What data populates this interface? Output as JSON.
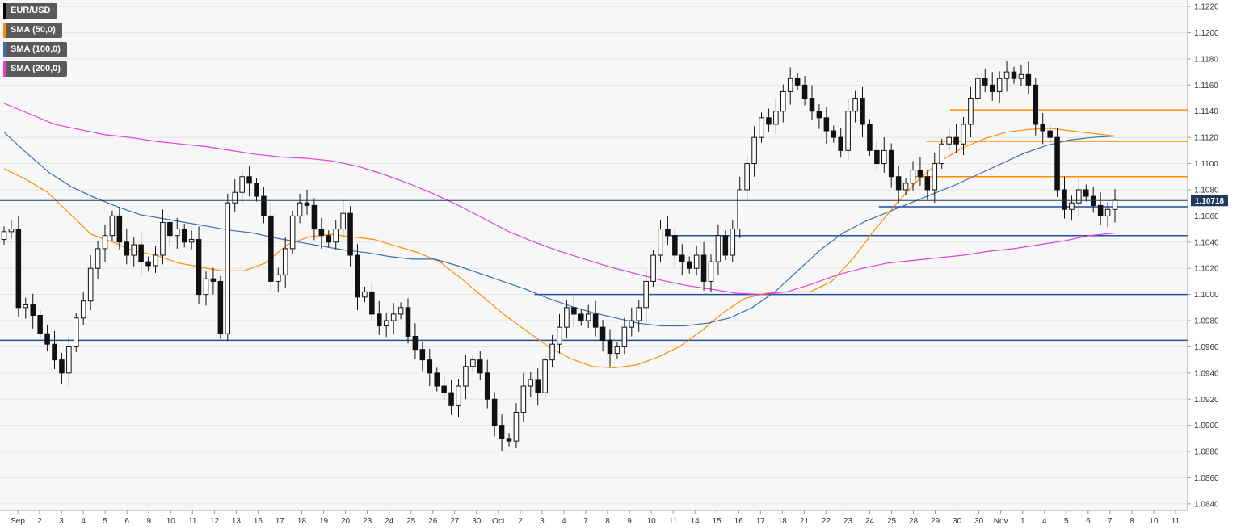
{
  "chart_data": {
    "type": "candlestick",
    "symbol": "EUR/USD",
    "colors": {
      "up": "#ffffff",
      "down": "#111111",
      "wick": "#111111",
      "grid": "#e6e6e6",
      "background": "#f7f7f7"
    },
    "legend": [
      {
        "label": "EUR/USD",
        "color": "#000000"
      },
      {
        "label": "SMA (50,0)",
        "color": "#ff8c00"
      },
      {
        "label": "SMA (100,0)",
        "color": "#3a6fb0"
      },
      {
        "label": "SMA (200,0)",
        "color": "#e040e0"
      }
    ],
    "y_axis": {
      "position": "right",
      "ylim": [
        1.0835,
        1.1225
      ],
      "ticks": [
        "1.1220",
        "1.1200",
        "1.1180",
        "1.1160",
        "1.1140",
        "1.1120",
        "1.1100",
        "1.1080",
        "1.1060",
        "1.1040",
        "1.1020",
        "1.1000",
        "1.0980",
        "1.0960",
        "1.0940",
        "1.0920",
        "1.0900",
        "1.0880",
        "1.0860",
        "1.0840"
      ]
    },
    "x_axis": {
      "labels": [
        "Sep",
        "2",
        "3",
        "4",
        "5",
        "6",
        "9",
        "10",
        "11",
        "12",
        "13",
        "16",
        "17",
        "18",
        "19",
        "20",
        "23",
        "24",
        "25",
        "26",
        "27",
        "30",
        "Oct",
        "2",
        "3",
        "4",
        "7",
        "8",
        "9",
        "10",
        "11",
        "14",
        "15",
        "16",
        "17",
        "18",
        "21",
        "22",
        "23",
        "24",
        "25",
        "28",
        "29",
        "30",
        "30",
        "Nov",
        "1",
        "4",
        "5",
        "6",
        "7",
        "8",
        "10",
        "11"
      ]
    },
    "last_price": {
      "value": 1.10718,
      "label": "1.10718",
      "color": "#1f3a5c"
    },
    "candle_closes": [
      1.1048,
      1.105,
      1.099,
      1.0992,
      1.0984,
      1.097,
      1.0962,
      1.095,
      1.094,
      1.096,
      1.0982,
      1.0995,
      1.102,
      1.1035,
      1.1045,
      1.106,
      1.104,
      1.103,
      1.1038,
      1.1025,
      1.1022,
      1.103,
      1.1055,
      1.1045,
      1.105,
      1.104,
      1.1042,
      1.1,
      1.1012,
      1.101,
      1.097,
      1.107,
      1.1078,
      1.109,
      1.1085,
      1.1075,
      1.106,
      1.101,
      1.1015,
      1.1035,
      1.106,
      1.107,
      1.1068,
      1.105,
      1.1045,
      1.104,
      1.105,
      1.1062,
      1.103,
      1.0998,
      1.1002,
      1.0985,
      1.0976,
      1.098,
      1.0985,
      1.099,
      1.0968,
      1.0958,
      1.095,
      1.094,
      1.093,
      1.0925,
      1.0915,
      1.093,
      1.0945,
      1.095,
      1.094,
      1.092,
      1.09,
      1.089,
      1.0888,
      1.091,
      1.093,
      1.0935,
      1.0925,
      1.095,
      1.0962,
      1.0975,
      1.099,
      1.0985,
      1.098,
      1.0985,
      1.0975,
      1.0965,
      1.0955,
      1.096,
      1.0975,
      1.098,
      1.099,
      1.101,
      1.103,
      1.105,
      1.1045,
      1.103,
      1.1025,
      1.102,
      1.103,
      1.101,
      1.1025,
      1.1045,
      1.103,
      1.105,
      1.108,
      1.11,
      1.112,
      1.1135,
      1.113,
      1.114,
      1.1155,
      1.1165,
      1.116,
      1.115,
      1.114,
      1.1135,
      1.1125,
      1.112,
      1.111,
      1.114,
      1.115,
      1.113,
      1.111,
      1.11,
      1.111,
      1.109,
      1.108,
      1.1085,
      1.1095,
      1.109,
      1.108,
      1.11,
      1.1115,
      1.112,
      1.1115,
      1.113,
      1.115,
      1.1165,
      1.116,
      1.1155,
      1.1165,
      1.117,
      1.1165,
      1.1168,
      1.116,
      1.113,
      1.1125,
      1.112,
      1.108,
      1.1065,
      1.107,
      1.108,
      1.1075,
      1.1068,
      1.106,
      1.1065,
      1.1072
    ],
    "sma_series": [
      {
        "name": "SMA (50,0)",
        "color": "#ff8c00",
        "values": [
          1.1096,
          1.1088,
          1.1078,
          1.1062,
          1.1046,
          1.104,
          1.1033,
          1.103,
          1.1024,
          1.1021,
          1.1018,
          1.1018,
          1.1024,
          1.1038,
          1.1044,
          1.1046,
          1.1044,
          1.1042,
          1.1037,
          1.1032,
          1.1025,
          1.1012,
          1.0998,
          1.0984,
          1.0972,
          1.096,
          1.0951,
          1.0945,
          1.0944,
          1.0946,
          1.0952,
          1.096,
          1.0972,
          1.0986,
          1.0997,
          1.1001,
          1.1002,
          1.1002,
          1.101,
          1.1028,
          1.105,
          1.107,
          1.1088,
          1.1102,
          1.1112,
          1.1119,
          1.1124,
          1.1126,
          1.1127,
          1.1125,
          1.1123,
          1.1121
        ]
      },
      {
        "name": "SMA (100,0)",
        "color": "#3a6fb0",
        "values": [
          1.1124,
          1.1108,
          1.1093,
          1.1082,
          1.1074,
          1.1067,
          1.1061,
          1.1058,
          1.1055,
          1.1052,
          1.1049,
          1.1047,
          1.1043,
          1.104,
          1.1037,
          1.1034,
          1.1032,
          1.1029,
          1.1027,
          1.1027,
          1.1022,
          1.1016,
          1.101,
          1.1004,
          1.0997,
          1.0991,
          1.0986,
          1.0982,
          1.0978,
          1.0976,
          1.0976,
          1.0978,
          1.0982,
          1.099,
          1.1002,
          1.1018,
          1.1034,
          1.1047,
          1.1056,
          1.1063,
          1.107,
          1.1077,
          1.1084,
          1.1092,
          1.11,
          1.1108,
          1.1114,
          1.1118,
          1.112,
          1.1121
        ]
      },
      {
        "name": "SMA (200,0)",
        "color": "#e040e0",
        "values": [
          1.1146,
          1.1138,
          1.113,
          1.1126,
          1.1122,
          1.112,
          1.1117,
          1.1115,
          1.1113,
          1.111,
          1.1107,
          1.1105,
          1.1104,
          1.1102,
          1.1098,
          1.1092,
          1.1085,
          1.1077,
          1.1068,
          1.1058,
          1.1048,
          1.104,
          1.1033,
          1.1027,
          1.1021,
          1.1016,
          1.1011,
          1.1007,
          1.1004,
          1.1001,
          1.1,
          1.1002,
          1.1008,
          1.1015,
          1.102,
          1.1024,
          1.1026,
          1.1028,
          1.103,
          1.1033,
          1.1035,
          1.1038,
          1.1041,
          1.1045,
          1.1047
        ]
      }
    ],
    "horizontal_levels": [
      {
        "value": 1.1141,
        "color": "#ff8c00",
        "from_frac": 0.8
      },
      {
        "value": 1.1117,
        "color": "#ff8c00",
        "from_frac": 0.78
      },
      {
        "value": 1.109,
        "color": "#ff8c00",
        "from_frac": 0.77
      },
      {
        "value": 1.1067,
        "color": "#1f4f9a",
        "from_frac": 0.74
      },
      {
        "value": 1.1045,
        "color": "#1f4f9a",
        "from_frac": 0.56
      },
      {
        "value": 1.1,
        "color": "#1f4f9a",
        "from_frac": 0.45
      },
      {
        "value": 1.0965,
        "color": "#1f4f9a",
        "from_frac": 0.0
      }
    ]
  }
}
